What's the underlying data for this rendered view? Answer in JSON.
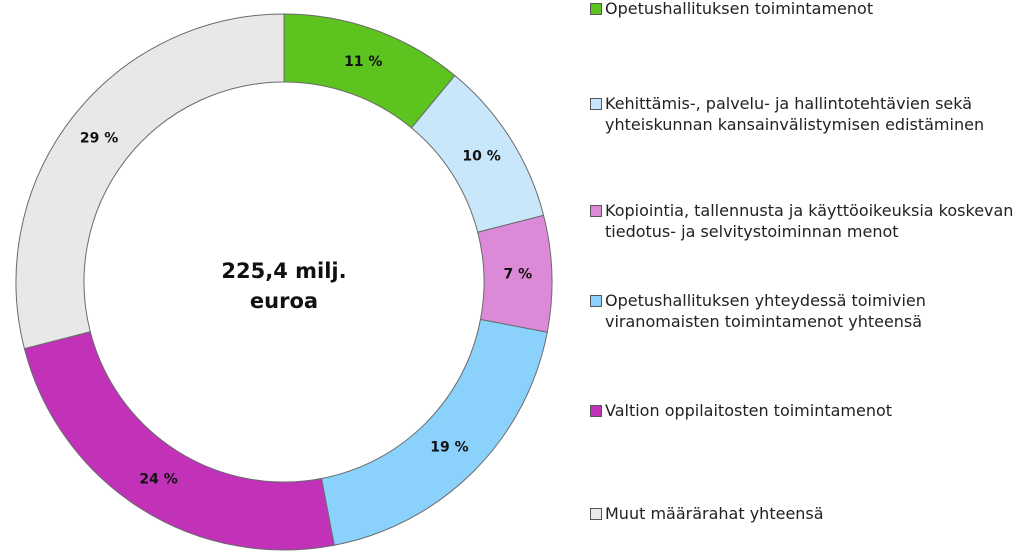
{
  "chart_data": {
    "type": "donut",
    "center_label": [
      "225,4 milj.",
      "euroa"
    ],
    "categories": [
      "Opetushallituksen toimintamenot",
      "Kehittämis-, palvelu- ja hallintotehtävien sekä yhteiskunnan kansainvälistymisen edistäminen",
      "Kopiointia, tallennusta ja käyttöoikeuksia koskevan tiedotus- ja selvitystoiminnan menot",
      "Opetushallituksen yhteydessä toimivien viranomaisten toimintamenot yhteensä",
      "Valtion oppilaitosten toimintamenot",
      "Muut määrärahat yhteensä"
    ],
    "values": [
      11,
      10,
      7,
      19,
      24,
      29
    ],
    "value_labels": [
      "11 %",
      "10 %",
      "7 %",
      "19 %",
      "24 %",
      "29 %"
    ],
    "colors": [
      "#5dc41f",
      "#c8e7fb",
      "#dc8ad8",
      "#8ad2fc",
      "#c132b9",
      "#e8e8e8"
    ]
  }
}
